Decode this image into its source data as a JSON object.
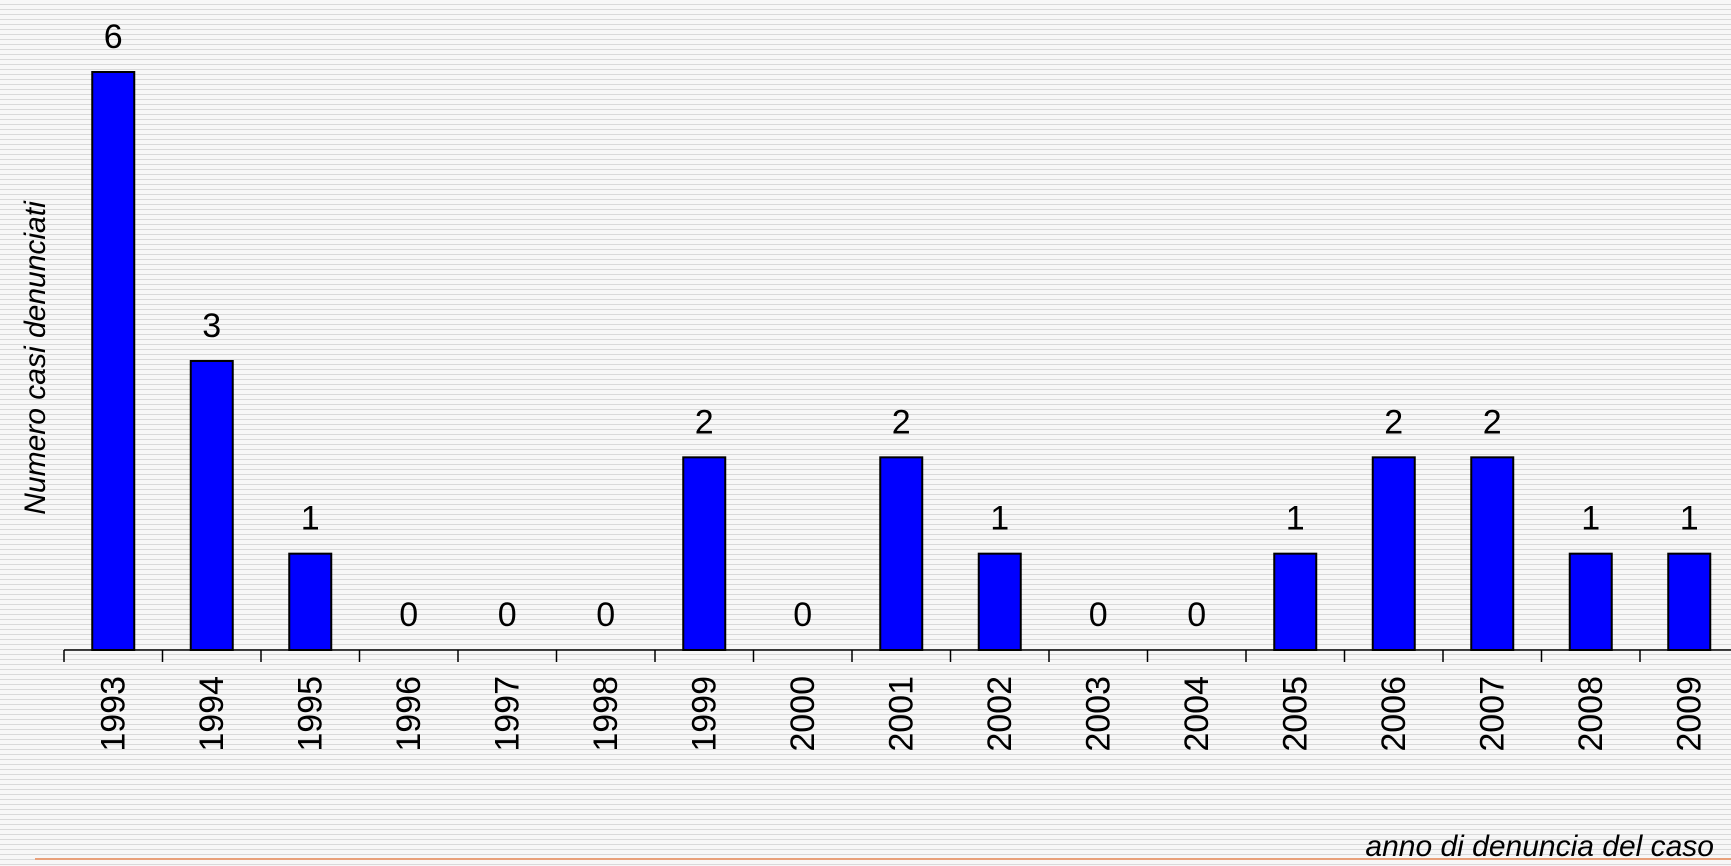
{
  "chart_data": {
    "type": "bar",
    "title": "",
    "xlabel": "anno di denuncia del caso",
    "ylabel": "Numero casi denunciati",
    "categories": [
      "1993",
      "1994",
      "1995",
      "1996",
      "1997",
      "1998",
      "1999",
      "2000",
      "2001",
      "2002",
      "2003",
      "2004",
      "2005",
      "2006",
      "2007",
      "2008",
      "2009"
    ],
    "values": [
      6,
      3,
      1,
      0,
      0,
      0,
      2,
      0,
      2,
      1,
      0,
      0,
      1,
      2,
      2,
      1,
      1
    ],
    "data_labels": [
      "6",
      "3",
      "1",
      "0",
      "0",
      "0",
      "2",
      "0",
      "2",
      "1",
      "0",
      "0",
      "1",
      "2",
      "2",
      "1",
      "1"
    ],
    "ylim": [
      0,
      6
    ],
    "grid": false,
    "legend": "none",
    "bar_color": "#0000ff",
    "bar_edge_color": "#000000"
  }
}
